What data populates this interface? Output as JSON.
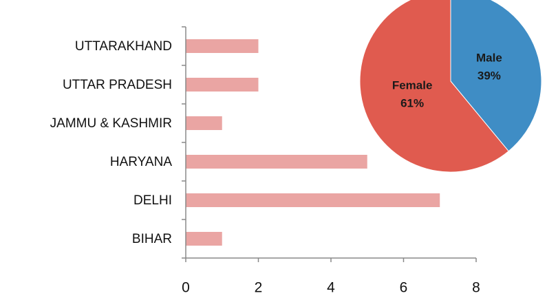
{
  "chart_data": [
    {
      "type": "bar",
      "orientation": "horizontal",
      "categories": [
        "UTTARAKHAND",
        "UTTAR PRADESH",
        "JAMMU & KASHMIR",
        "HARYANA",
        "DELHI",
        "BIHAR"
      ],
      "values": [
        2,
        2,
        1,
        5,
        7,
        1
      ],
      "color": "#eaa5a3",
      "xlim": [
        0,
        8
      ],
      "xticks": [
        0,
        2,
        4,
        6,
        8
      ],
      "grid": false
    },
    {
      "type": "pie",
      "categories": [
        "Male",
        "Female"
      ],
      "values": [
        39,
        61
      ],
      "value_labels": [
        "39%",
        "61%"
      ],
      "colors": [
        "#3f8dc5",
        "#e05b4f"
      ]
    }
  ]
}
